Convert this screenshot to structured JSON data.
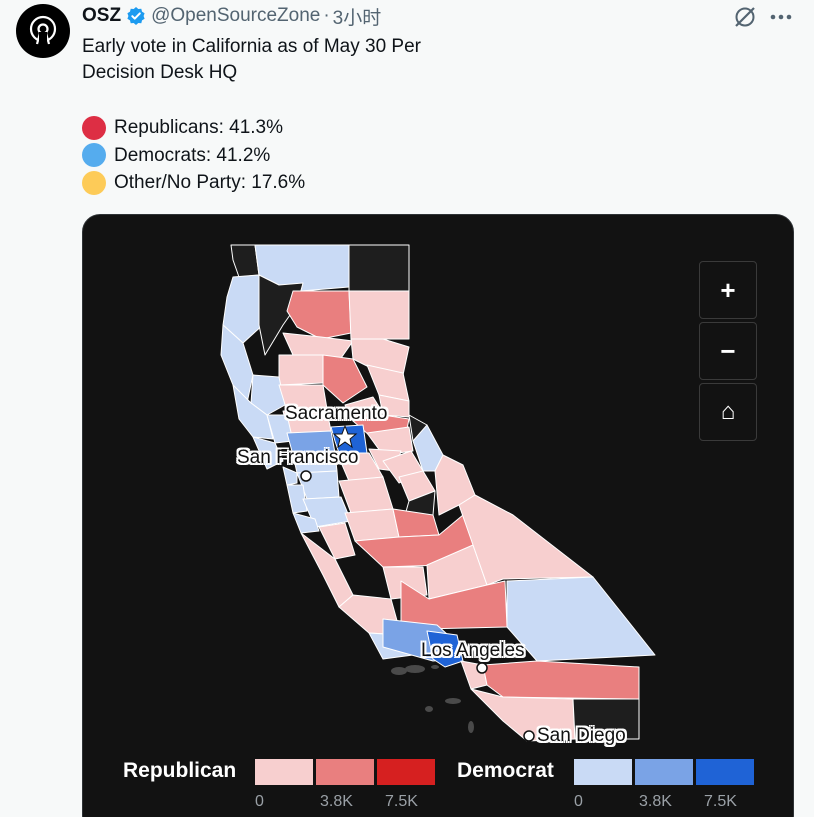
{
  "account": {
    "name": "OSZ",
    "handle": "@OpenSourceZone",
    "separator": "·",
    "time": "3小时"
  },
  "icons": {
    "avatar": "open-source-logo-icon",
    "verified": "verified-badge-icon",
    "grok": "grok-icon",
    "more": "more-icon",
    "zoom_in": "plus-icon",
    "zoom_out": "minus-icon",
    "home": "home-icon"
  },
  "tweet": {
    "line1": "Early vote in California as of May 30 Per",
    "line2": "Decision Desk HQ",
    "legend": [
      {
        "label": "Republicans: 41.3%",
        "color": "#dd2e44"
      },
      {
        "label": "Democrats: 41.2%",
        "color": "#55acee"
      },
      {
        "label": "Other/No Party: 17.6%",
        "color": "#fdcb58"
      }
    ]
  },
  "map": {
    "controls": {
      "zoom_in": "+",
      "zoom_out": "−",
      "home": "⌂"
    },
    "cities": {
      "sacramento": "Sacramento",
      "san_francisco": "San Francisco",
      "los_angeles": "Los Angeles",
      "san_diego": "San Diego"
    },
    "scale": {
      "republican_label": "Republican",
      "democrat_label": "Democrat",
      "republican_colors": [
        "#f7cfcf",
        "#e97f7f",
        "#d62020"
      ],
      "democrat_colors": [
        "#c9daf5",
        "#7aa3e6",
        "#1f63d6"
      ],
      "republican_ticks": [
        "0",
        "3.8K",
        "7.5K"
      ],
      "democrat_ticks": [
        "0",
        "3.8K",
        "7.5K"
      ]
    }
  }
}
